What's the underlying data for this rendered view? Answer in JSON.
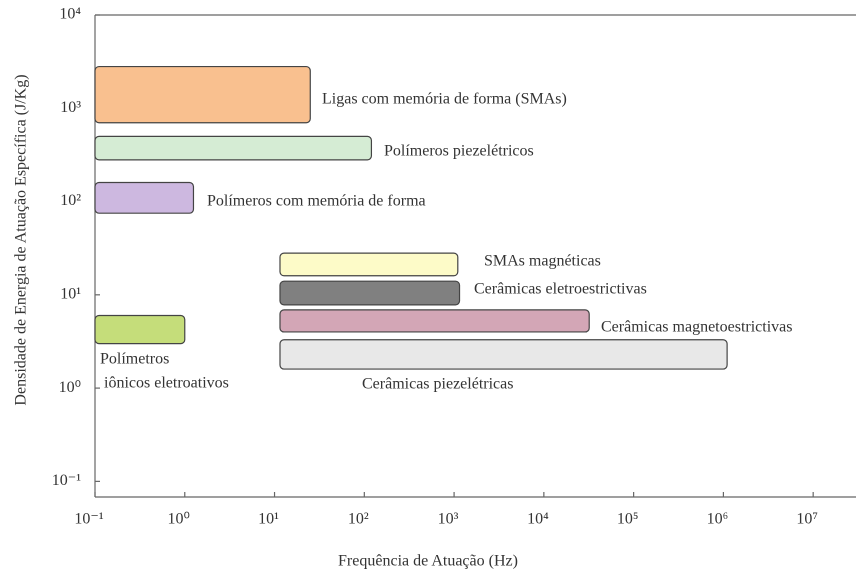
{
  "chart_data": {
    "type": "range-box",
    "x_label": "Frequência de Atuação (Hz)",
    "y_label": "Densidade de Energia de Atuação Específica (J/Kg)",
    "xscale": "log",
    "yscale": "log",
    "xlim": [
      0.1,
      30000000
    ],
    "ylim": [
      0.068,
      10000
    ],
    "xticks": [
      {
        "value": 0.1,
        "label": "10⁻¹"
      },
      {
        "value": 1,
        "label": "10⁰"
      },
      {
        "value": 10,
        "label": "10¹"
      },
      {
        "value": 100,
        "label": "10²"
      },
      {
        "value": 1000,
        "label": "10³"
      },
      {
        "value": 10000,
        "label": "10⁴"
      },
      {
        "value": 100000,
        "label": "10⁵"
      },
      {
        "value": 1000000,
        "label": "10⁶"
      },
      {
        "value": 10000000,
        "label": "10⁷"
      }
    ],
    "yticks": [
      {
        "value": 0.1,
        "label": "10⁻¹"
      },
      {
        "value": 1,
        "label": "10⁰"
      },
      {
        "value": 10,
        "label": "10¹"
      },
      {
        "value": 100,
        "label": "10²"
      },
      {
        "value": 1000,
        "label": "10³"
      },
      {
        "value": 10000,
        "label": "10⁴"
      }
    ],
    "series": [
      {
        "label": [
          "Ligas com memória de forma (SMAs)"
        ],
        "color": "#f9c08f",
        "x": [
          0.1,
          25
        ],
        "y": [
          700,
          2800
        ]
      },
      {
        "label": [
          "Polímeros piezelétricos"
        ],
        "color": "#d5ecd4",
        "x": [
          0.1,
          120
        ],
        "y": [
          280,
          500
        ]
      },
      {
        "label": [
          "Polímeros com memória de forma"
        ],
        "color": "#cdb8e0",
        "x": [
          0.1,
          1.25
        ],
        "y": [
          75,
          160
        ]
      },
      {
        "label": [
          "SMAs magnéticas"
        ],
        "color": "#fdfbc8",
        "x": [
          11.5,
          1100
        ],
        "y": [
          16,
          28
        ]
      },
      {
        "label": [
          "Cerâmicas eletroestrictivas"
        ],
        "color": "#808080",
        "x": [
          11.5,
          1150
        ],
        "y": [
          7.8,
          14
        ]
      },
      {
        "label": [
          "Cerâmicas magnetoestrictivas"
        ],
        "color": "#d3a6b6",
        "x": [
          11.5,
          32000
        ],
        "y": [
          4,
          6.9
        ]
      },
      {
        "label": [
          "Polímetros",
          "iônicos eletroativos"
        ],
        "color": "#c5dd7a",
        "x": [
          0.1,
          1.0
        ],
        "y": [
          3,
          6
        ]
      },
      {
        "label": [
          "Cerâmicas piezelétricas"
        ],
        "color": "#e8e8e8",
        "x": [
          11.5,
          1100000
        ],
        "y": [
          1.6,
          3.3
        ]
      }
    ]
  }
}
